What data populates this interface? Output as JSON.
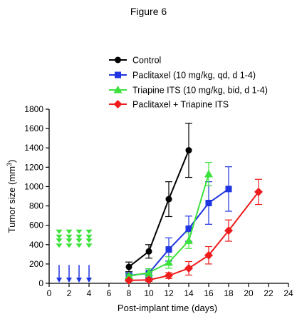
{
  "figure": {
    "title": "Figure 6"
  },
  "chart_data": {
    "type": "line",
    "title": "",
    "xlabel": "Post-implant time (days)",
    "ylabel": "Tumor size (mm",
    "ylabel_sup": "3",
    "ylabel_end": ")",
    "xlim": [
      0,
      24
    ],
    "ylim": [
      0,
      1800
    ],
    "xticks": [
      0,
      2,
      4,
      6,
      8,
      10,
      12,
      14,
      16,
      18,
      20,
      22,
      24
    ],
    "yticks": [
      0,
      200,
      400,
      600,
      800,
      1000,
      1200,
      1400,
      1600,
      1800
    ],
    "grid": false,
    "legend_position": "top-right",
    "series": [
      {
        "name": "Control",
        "color": "#000000",
        "marker": "circle",
        "x": [
          8,
          10,
          12,
          14
        ],
        "y": [
          170,
          330,
          870,
          1375
        ],
        "err": [
          50,
          70,
          180,
          280
        ]
      },
      {
        "name": "Paclitaxel (10 mg/kg, qd, d 1-4)",
        "color": "#1f35e0",
        "marker": "square",
        "x": [
          8,
          10,
          12,
          14,
          16,
          18
        ],
        "y": [
          80,
          105,
          350,
          565,
          830,
          975
        ],
        "err": [
          25,
          45,
          120,
          130,
          220,
          230
        ]
      },
      {
        "name": "Triapine ITS (10 mg/kg, bid, d 1-4)",
        "color": "#3ce23c",
        "marker": "triangle",
        "x": [
          8,
          10,
          12,
          14,
          16
        ],
        "y": [
          75,
          110,
          215,
          440,
          1130
        ],
        "err": [
          20,
          40,
          60,
          80,
          120
        ]
      },
      {
        "name": "Paclitaxel + Triapine ITS",
        "color": "#ee1c1c",
        "marker": "diamond",
        "x": [
          8,
          10,
          12,
          14,
          16,
          18,
          21
        ],
        "y": [
          30,
          35,
          80,
          155,
          290,
          545,
          945
        ],
        "err": [
          10,
          15,
          30,
          70,
          90,
          110,
          130
        ]
      }
    ],
    "dosing_markers": {
      "days": [
        1,
        2,
        3,
        4
      ],
      "triapine_color": "#3ce23c",
      "paclitaxel_color": "#1f35e0"
    }
  }
}
